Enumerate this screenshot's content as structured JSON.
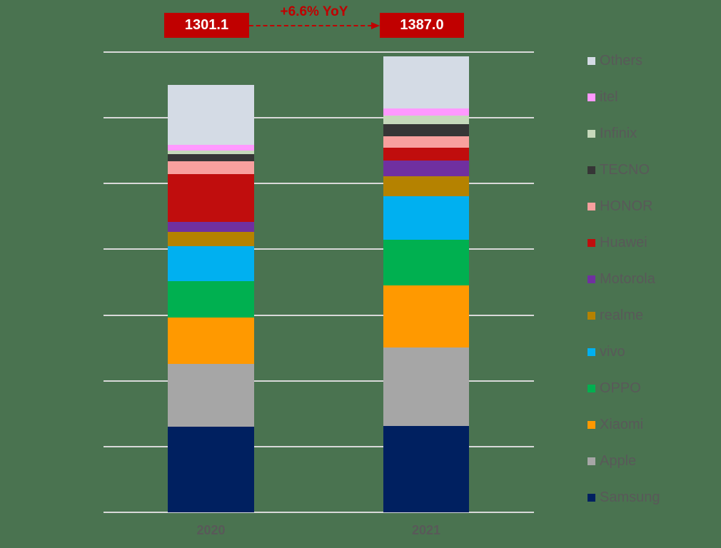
{
  "chart_data": {
    "type": "bar",
    "stacked": true,
    "title": "",
    "xlabel": "",
    "ylabel": "",
    "ylim": [
      0,
      1400
    ],
    "grid": true,
    "gridlines": [
      0,
      200,
      400,
      600,
      800,
      1000,
      1200,
      1400
    ],
    "legend_position": "right",
    "categories": [
      "2020",
      "2021"
    ],
    "totals": [
      "1301.1",
      "1387.0"
    ],
    "annotation": "+6.6% YoY",
    "series": [
      {
        "name": "Samsung",
        "color": "#002060",
        "values": [
          261,
          263
        ]
      },
      {
        "name": "Apple",
        "color": "#a6a6a6",
        "values": [
          191,
          239
        ]
      },
      {
        "name": "Xiaomi",
        "color": "#ff9900",
        "values": [
          141,
          189
        ]
      },
      {
        "name": "OPPO",
        "color": "#00b050",
        "values": [
          111,
          139
        ]
      },
      {
        "name": "vivo",
        "color": "#00b0f0",
        "values": [
          106,
          132
        ]
      },
      {
        "name": "realme",
        "color": "#b58200",
        "values": [
          43,
          61
        ]
      },
      {
        "name": "Motorola",
        "color": "#7030a0",
        "values": [
          30,
          48
        ]
      },
      {
        "name": "Huawei",
        "color": "#c00d0d",
        "values": [
          146,
          39
        ]
      },
      {
        "name": "HONOR",
        "color": "#f8a09e",
        "values": [
          39,
          35
        ]
      },
      {
        "name": "TECNO",
        "color": "#363636",
        "values": [
          22,
          35
        ]
      },
      {
        "name": "Infinix",
        "color": "#c6d9bb",
        "values": [
          11,
          26
        ]
      },
      {
        "name": "itel",
        "color": "#ff99ff",
        "values": [
          17,
          23
        ]
      },
      {
        "name": "Others",
        "color": "#d4dbe5",
        "values": [
          183.1,
          158
        ]
      }
    ]
  },
  "legend": {
    "items": [
      "Others",
      "itel",
      "Infinix",
      "TECNO",
      "HONOR",
      "Huawei",
      "Motorola",
      "realme",
      "vivo",
      "OPPO",
      "Xiaomi",
      "Apple",
      "Samsung"
    ]
  }
}
